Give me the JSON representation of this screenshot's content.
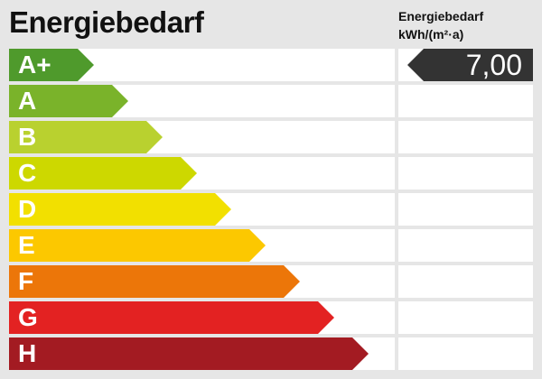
{
  "title": "Energiebedarf",
  "unit": {
    "line1": "Energiebedarf",
    "line2": "kWh/(m²·a)"
  },
  "classes": [
    {
      "label": "A+",
      "color": "#4f9a2c"
    },
    {
      "label": "A",
      "color": "#7ab32a"
    },
    {
      "label": "B",
      "color": "#b9d12f"
    },
    {
      "label": "C",
      "color": "#cdd800"
    },
    {
      "label": "D",
      "color": "#f2e000"
    },
    {
      "label": "E",
      "color": "#fcc800"
    },
    {
      "label": "F",
      "color": "#ec7609"
    },
    {
      "label": "G",
      "color": "#e32222"
    },
    {
      "label": "H",
      "color": "#a31b22"
    }
  ],
  "marker": {
    "value": "7,00",
    "class": "A+",
    "color": "#333333"
  }
}
